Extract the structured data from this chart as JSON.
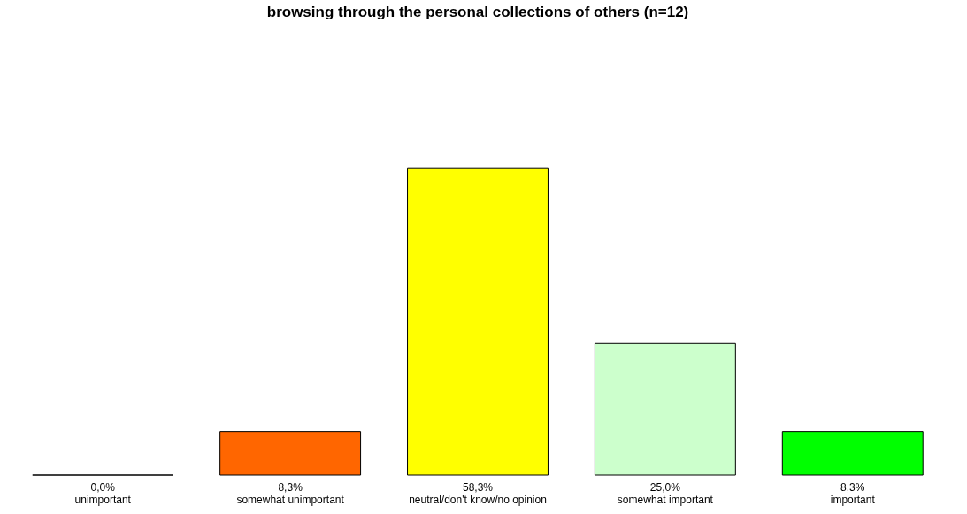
{
  "chart_data": {
    "type": "bar",
    "title": "browsing through the personal collections of others (n=12)",
    "categories": [
      "unimportant",
      "somewhat unimportant",
      "neutral/don't know/no opinion",
      "somewhat important",
      "important"
    ],
    "values": [
      0.0,
      8.3,
      58.3,
      25.0,
      8.3
    ],
    "value_labels": [
      "0,0%",
      "8,3%",
      "58,3%",
      "25,0%",
      "8,3%"
    ],
    "colors": [
      "#000000",
      "#ff6600",
      "#ffff00",
      "#ccffcc",
      "#00ff00"
    ]
  }
}
